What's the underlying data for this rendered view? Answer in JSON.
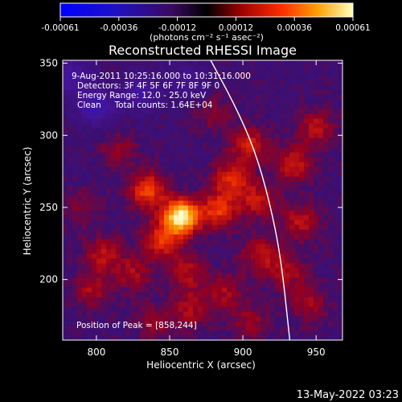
{
  "colorbar": {
    "tick_labels": [
      "-0.00061",
      "-0.00036",
      "-0.00012",
      "0.00012",
      "0.00036",
      "0.00061"
    ],
    "units_label": "(photons cm⁻² s⁻¹ asec⁻²)",
    "range": [
      -0.00061,
      0.00061
    ]
  },
  "plot": {
    "title": "Reconstructed RHESSI Image",
    "info_lines": [
      "9-Aug-2011 10:25:16.000 to 10:31:16.000",
      "Detectors: 3F 4F 5F 6F 7F 8F 9F 0",
      "Energy Range: 12.0 - 25.0 keV",
      "Clean     Total counts: 1.64E+04"
    ],
    "peak_label": "Position of Peak = [858,244]"
  },
  "footer": {
    "timestamp": "13-May-2022 03:23"
  },
  "chart_data": {
    "type": "heatmap",
    "title": "Reconstructed RHESSI Image",
    "xlabel": "Heliocentric X (arcsec)",
    "ylabel": "Heliocentric Y (arcsec)",
    "xlim": [
      777,
      968
    ],
    "ylim": [
      158,
      352
    ],
    "x_ticks": [
      800,
      850,
      900,
      950
    ],
    "y_ticks": [
      200,
      250,
      300,
      350
    ],
    "colorscale_range": [
      -0.00061,
      0.00061
    ],
    "peak_position": [
      858,
      244
    ],
    "blobs": [
      {
        "x": 858,
        "y": 244,
        "amplitude": 0.00061
      },
      {
        "x": 835,
        "y": 262,
        "amplitude": 0.0003
      },
      {
        "x": 845,
        "y": 228,
        "amplitude": 0.00028
      },
      {
        "x": 883,
        "y": 248,
        "amplitude": 0.00027
      },
      {
        "x": 892,
        "y": 270,
        "amplitude": 0.00024
      },
      {
        "x": 905,
        "y": 293,
        "amplitude": 0.00022
      },
      {
        "x": 910,
        "y": 255,
        "amplitude": 0.0002
      },
      {
        "x": 935,
        "y": 280,
        "amplitude": 0.0002
      },
      {
        "x": 950,
        "y": 305,
        "amplitude": 0.00018
      },
      {
        "x": 940,
        "y": 240,
        "amplitude": 0.00019
      },
      {
        "x": 912,
        "y": 217,
        "amplitude": 0.00018
      },
      {
        "x": 930,
        "y": 205,
        "amplitude": 0.00016
      },
      {
        "x": 945,
        "y": 183,
        "amplitude": 0.00015
      },
      {
        "x": 805,
        "y": 218,
        "amplitude": 0.00018
      },
      {
        "x": 797,
        "y": 193,
        "amplitude": 0.00016
      },
      {
        "x": 825,
        "y": 205,
        "amplitude": 0.00015
      },
      {
        "x": 862,
        "y": 205,
        "amplitude": 0.00017
      },
      {
        "x": 865,
        "y": 180,
        "amplitude": 0.00016
      },
      {
        "x": 888,
        "y": 192,
        "amplitude": 0.00015
      },
      {
        "x": 905,
        "y": 170,
        "amplitude": 0.00014
      },
      {
        "x": 840,
        "y": 170,
        "amplitude": 0.00013
      },
      {
        "x": 815,
        "y": 290,
        "amplitude": 0.00012
      },
      {
        "x": 880,
        "y": 315,
        "amplitude": 0.00011
      },
      {
        "x": 790,
        "y": 250,
        "amplitude": 0.0001
      },
      {
        "x": 800,
        "y": 320,
        "amplitude": -0.00025
      },
      {
        "x": 830,
        "y": 330,
        "amplitude": -0.0002
      },
      {
        "x": 862,
        "y": 338,
        "amplitude": -0.00013
      },
      {
        "x": 783,
        "y": 340,
        "amplitude": -0.0002
      }
    ],
    "limb_curve": [
      [
        878,
        352
      ],
      [
        895,
        320
      ],
      [
        908,
        290
      ],
      [
        918,
        255
      ],
      [
        926,
        215
      ],
      [
        932,
        158
      ]
    ]
  }
}
